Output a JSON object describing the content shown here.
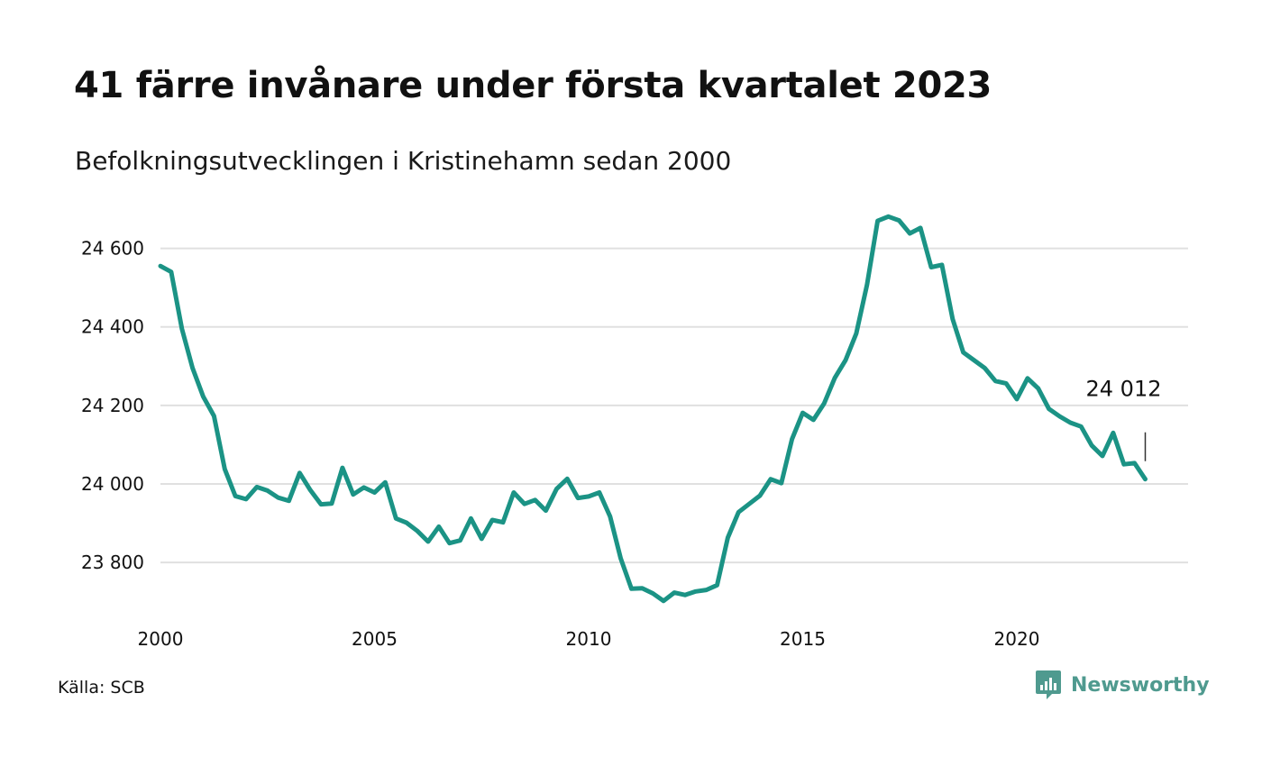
{
  "title": "41 färre invånare under första kvartalet 2023",
  "subtitle": "Befolkningsutvecklingen i Kristinehamn sedan 2000",
  "source": "Källa: SCB",
  "brand": {
    "name": "Newsworthy",
    "icon": "chart-bubble-icon",
    "color": "#4f9a8f"
  },
  "colors": {
    "line": "#1b9385",
    "grid": "#e0e0e0",
    "text": "#111111"
  },
  "chart_data": {
    "type": "line",
    "title": "41 färre invånare under första kvartalet 2023",
    "subtitle": "Befolkningsutvecklingen i Kristinehamn sedan 2000",
    "xlabel": "",
    "ylabel": "",
    "xlim": [
      2000,
      2023.25
    ],
    "ylim": [
      23690,
      24700
    ],
    "grid": "horizontal",
    "legend": "none",
    "yticks": [
      23800,
      24000,
      24200,
      24400,
      24600
    ],
    "ytick_labels": [
      "23 800",
      "24 000",
      "24 200",
      "24 400",
      "24 600"
    ],
    "xticks": [
      2000,
      2005,
      2010,
      2015,
      2020
    ],
    "xtick_labels": [
      "2000",
      "2005",
      "2010",
      "2015",
      "2020"
    ],
    "end_label": "24 012",
    "series": [
      {
        "x": [
          2000.0,
          2000.25,
          2000.5,
          2000.75,
          2001.0,
          2001.25,
          2001.5,
          2001.75,
          2002.0,
          2002.25,
          2002.5,
          2002.75,
          2003.0,
          2003.25,
          2003.5,
          2003.75,
          2004.0,
          2004.25,
          2004.5,
          2004.75,
          2005.0,
          2005.25,
          2005.5,
          2005.75,
          2006.0,
          2006.25,
          2006.5,
          2006.75,
          2007.0,
          2007.25,
          2007.5,
          2007.75,
          2008.0,
          2008.25,
          2008.5,
          2008.75,
          2009.0,
          2009.25,
          2009.5,
          2009.75,
          2010.0,
          2010.25,
          2010.5,
          2010.75,
          2011.0,
          2011.25,
          2011.5,
          2011.75,
          2012.0,
          2012.25,
          2012.5,
          2012.75,
          2013.0,
          2013.25,
          2013.5,
          2013.75,
          2014.0,
          2014.25,
          2014.5,
          2014.75,
          2015.0,
          2015.25,
          2015.5,
          2015.75,
          2016.0,
          2016.25,
          2016.5,
          2016.75,
          2017.0,
          2017.25,
          2017.5,
          2017.75,
          2018.0,
          2018.25,
          2018.5,
          2018.75,
          2019.0,
          2019.25,
          2019.5,
          2019.75,
          2020.0,
          2020.25,
          2020.5,
          2020.75,
          2021.0,
          2021.25,
          2021.5,
          2021.75,
          2022.0,
          2022.25,
          2022.5,
          2022.75,
          2023.0
        ],
        "values": [
          24555,
          24540,
          24395,
          24295,
          24222,
          24173,
          24038,
          23969,
          23961,
          23992,
          23983,
          23965,
          23957,
          24028,
          23984,
          23948,
          23950,
          24041,
          23973,
          23991,
          23978,
          24004,
          23912,
          23901,
          23880,
          23853,
          23891,
          23849,
          23856,
          23912,
          23860,
          23908,
          23902,
          23978,
          23949,
          23959,
          23932,
          23987,
          24013,
          23964,
          23968,
          23978,
          23917,
          23810,
          23733,
          23734,
          23721,
          23702,
          23723,
          23717,
          23726,
          23730,
          23742,
          23863,
          23928,
          23949,
          23970,
          24012,
          24002,
          24114,
          24181,
          24163,
          24205,
          24270,
          24315,
          24383,
          24507,
          24670,
          24681,
          24671,
          24638,
          24652,
          24552,
          24558,
          24420,
          24335,
          24315,
          24295,
          24262,
          24256,
          24216,
          24269,
          24243,
          24191,
          24172,
          24156,
          24146,
          24098,
          24071,
          24130,
          24050,
          24053,
          24012
        ]
      }
    ]
  }
}
